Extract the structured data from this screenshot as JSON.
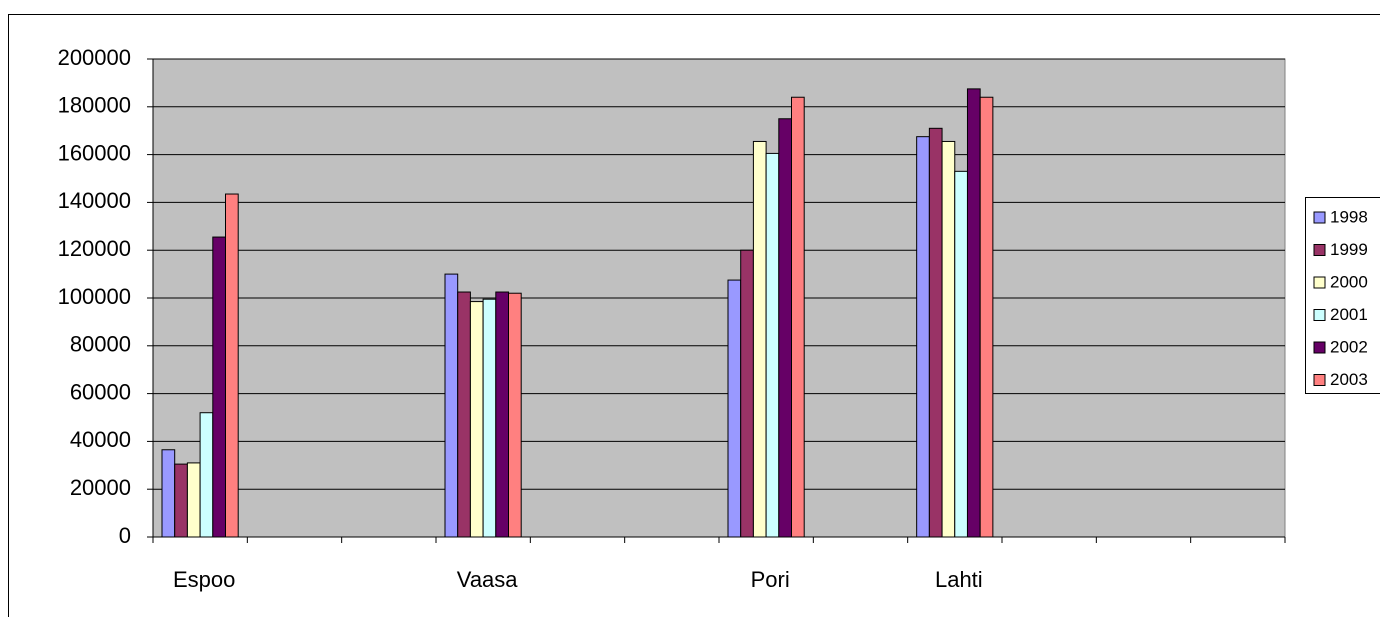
{
  "chart_data": {
    "type": "bar",
    "categories": [
      "Espoo",
      null,
      null,
      "Vaasa",
      null,
      null,
      "Pori",
      null,
      "Lahti",
      null,
      null,
      null
    ],
    "series": [
      {
        "name": "1998",
        "color": "#9999ff",
        "values": [
          36500,
          null,
          null,
          110000,
          null,
          null,
          107500,
          null,
          167500,
          null,
          null,
          null
        ]
      },
      {
        "name": "1999",
        "color": "#993366",
        "values": [
          30500,
          null,
          null,
          102500,
          null,
          null,
          120000,
          null,
          171000,
          null,
          null,
          null
        ]
      },
      {
        "name": "2000",
        "color": "#ffffcc",
        "values": [
          31000,
          null,
          null,
          98500,
          null,
          null,
          165500,
          null,
          165500,
          null,
          null,
          null
        ]
      },
      {
        "name": "2001",
        "color": "#ccffff",
        "values": [
          52000,
          null,
          null,
          99500,
          null,
          null,
          160500,
          null,
          153000,
          null,
          null,
          null
        ]
      },
      {
        "name": "2002",
        "color": "#660066",
        "values": [
          125500,
          null,
          null,
          102500,
          null,
          null,
          175000,
          null,
          187500,
          null,
          null,
          null
        ]
      },
      {
        "name": "2003",
        "color": "#ff8080",
        "values": [
          143500,
          null,
          null,
          102000,
          null,
          null,
          184000,
          null,
          184000,
          null,
          null,
          null
        ]
      }
    ],
    "ylim": [
      0,
      200000
    ],
    "yticks": [
      0,
      20000,
      40000,
      60000,
      80000,
      100000,
      120000,
      140000,
      160000,
      180000,
      200000
    ],
    "grid": true,
    "legend": "right",
    "plot_background": "#c0c0c0"
  }
}
